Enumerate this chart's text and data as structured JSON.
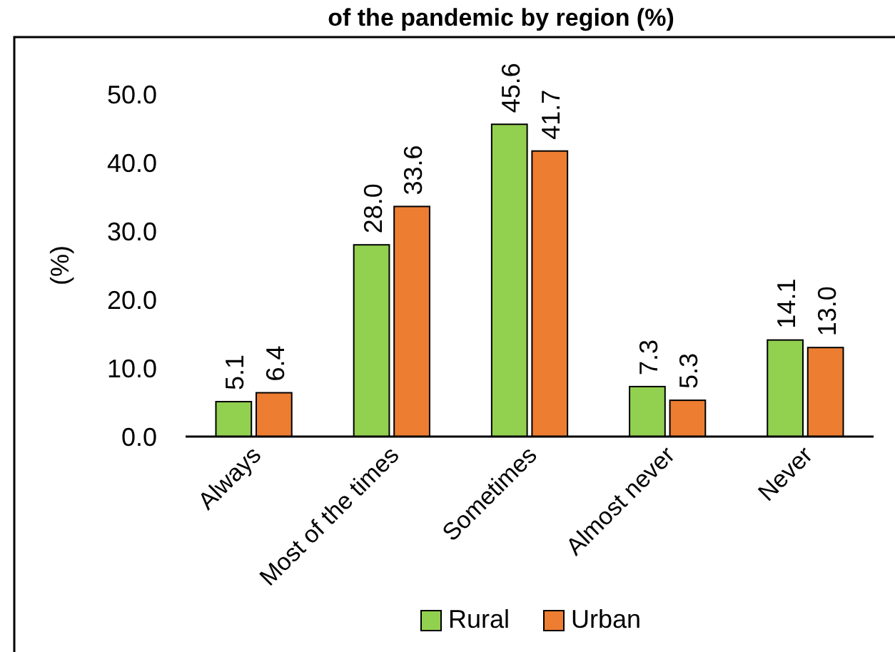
{
  "chart_data": {
    "type": "bar",
    "title": "of the pandemic by region (%)",
    "ylabel": "(%)",
    "categories": [
      "Always",
      "Most of the times",
      "Sometimes",
      "Almost never",
      "Never"
    ],
    "series": [
      {
        "name": "Rural",
        "color": "#92d050",
        "values": [
          5.1,
          28.0,
          45.6,
          7.3,
          14.1
        ],
        "value_labels": [
          "5.1",
          "28.0",
          "45.6",
          "7.3",
          "14.1"
        ]
      },
      {
        "name": "Urban",
        "color": "#ed7d31",
        "values": [
          6.4,
          33.6,
          41.7,
          5.3,
          13.0
        ],
        "value_labels": [
          "6.4",
          "33.6",
          "41.7",
          "5.3",
          "13.0"
        ]
      }
    ],
    "ylim": [
      0,
      50
    ],
    "yticks": [
      {
        "value": 0,
        "label": "0.0"
      },
      {
        "value": 10,
        "label": "10.0"
      },
      {
        "value": 20,
        "label": "20.0"
      },
      {
        "value": 30,
        "label": "30.0"
      },
      {
        "value": 40,
        "label": "40.0"
      },
      {
        "value": 50,
        "label": "50.0"
      }
    ],
    "legend": "bottom",
    "grid": false
  }
}
